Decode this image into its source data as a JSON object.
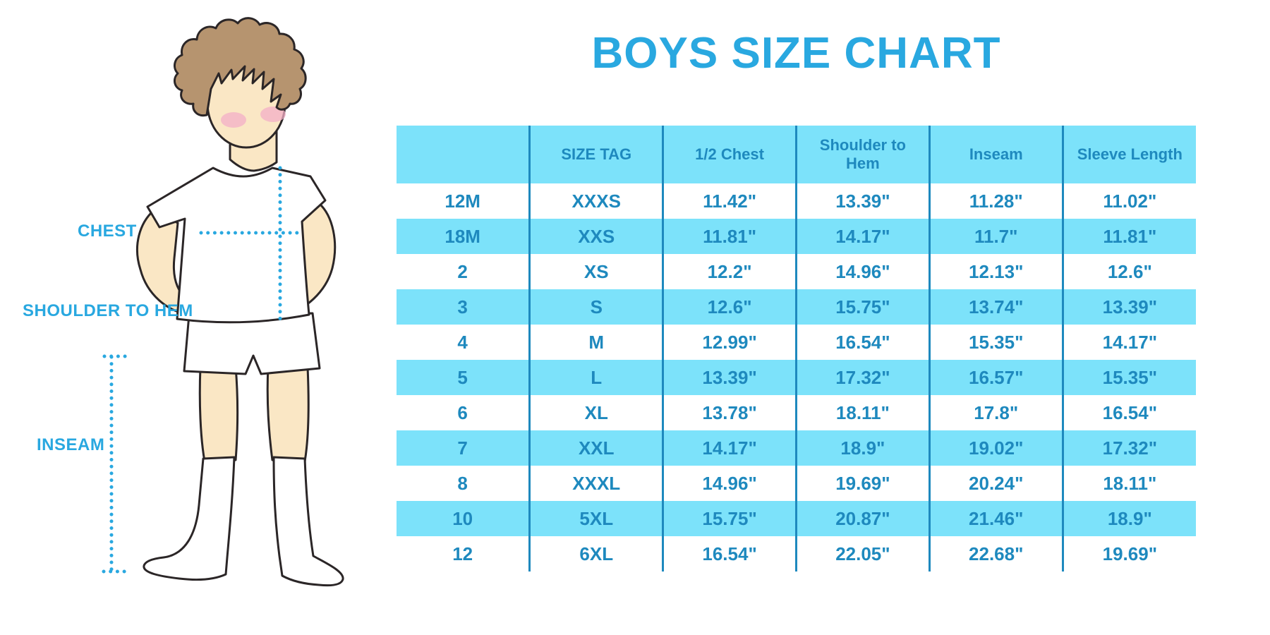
{
  "title": "BOYS SIZE CHART",
  "diagram": {
    "labels": {
      "chest": "CHEST",
      "shoulder_to_hem": "SHOULDER TO HEM",
      "inseam": "INSEAM"
    }
  },
  "chart_data": {
    "type": "table",
    "title": "BOYS SIZE CHART",
    "columns": [
      "",
      "SIZE TAG",
      "1/2 Chest",
      "Shoulder to Hem",
      "Inseam",
      "Sleeve Length"
    ],
    "rows": [
      [
        "12M",
        "XXXS",
        "11.42\"",
        "13.39\"",
        "11.28\"",
        "11.02\""
      ],
      [
        "18M",
        "XXS",
        "11.81\"",
        "14.17\"",
        "11.7\"",
        "11.81\""
      ],
      [
        "2",
        "XS",
        "12.2\"",
        "14.96\"",
        "12.13\"",
        "12.6\""
      ],
      [
        "3",
        "S",
        "12.6\"",
        "15.75\"",
        "13.74\"",
        "13.39\""
      ],
      [
        "4",
        "M",
        "12.99\"",
        "16.54\"",
        "15.35\"",
        "14.17\""
      ],
      [
        "5",
        "L",
        "13.39\"",
        "17.32\"",
        "16.57\"",
        "15.35\""
      ],
      [
        "6",
        "XL",
        "13.78\"",
        "18.11\"",
        "17.8\"",
        "16.54\""
      ],
      [
        "7",
        "XXL",
        "14.17\"",
        "18.9\"",
        "19.02\"",
        "17.32\""
      ],
      [
        "8",
        "XXXL",
        "14.96\"",
        "19.69\"",
        "20.24\"",
        "18.11\""
      ],
      [
        "10",
        "5XL",
        "15.75\"",
        "20.87\"",
        "21.46\"",
        "18.9\""
      ],
      [
        "12",
        "6XL",
        "16.54\"",
        "22.05\"",
        "22.68\"",
        "19.69\""
      ]
    ],
    "stripe_pattern": "alternating white / light blue rows, header light blue",
    "legend_position": "none",
    "grid": "vertical column dividers only"
  },
  "colors": {
    "accent_blue": "#29A8E0",
    "stripe_blue": "#7CE2FA",
    "table_text_blue": "#1E89BE",
    "hair_brown": "#B6946F",
    "skin_tone": "#FAE7C5",
    "blush_pink": "#F3AFC7",
    "outline": "#2B2627"
  }
}
